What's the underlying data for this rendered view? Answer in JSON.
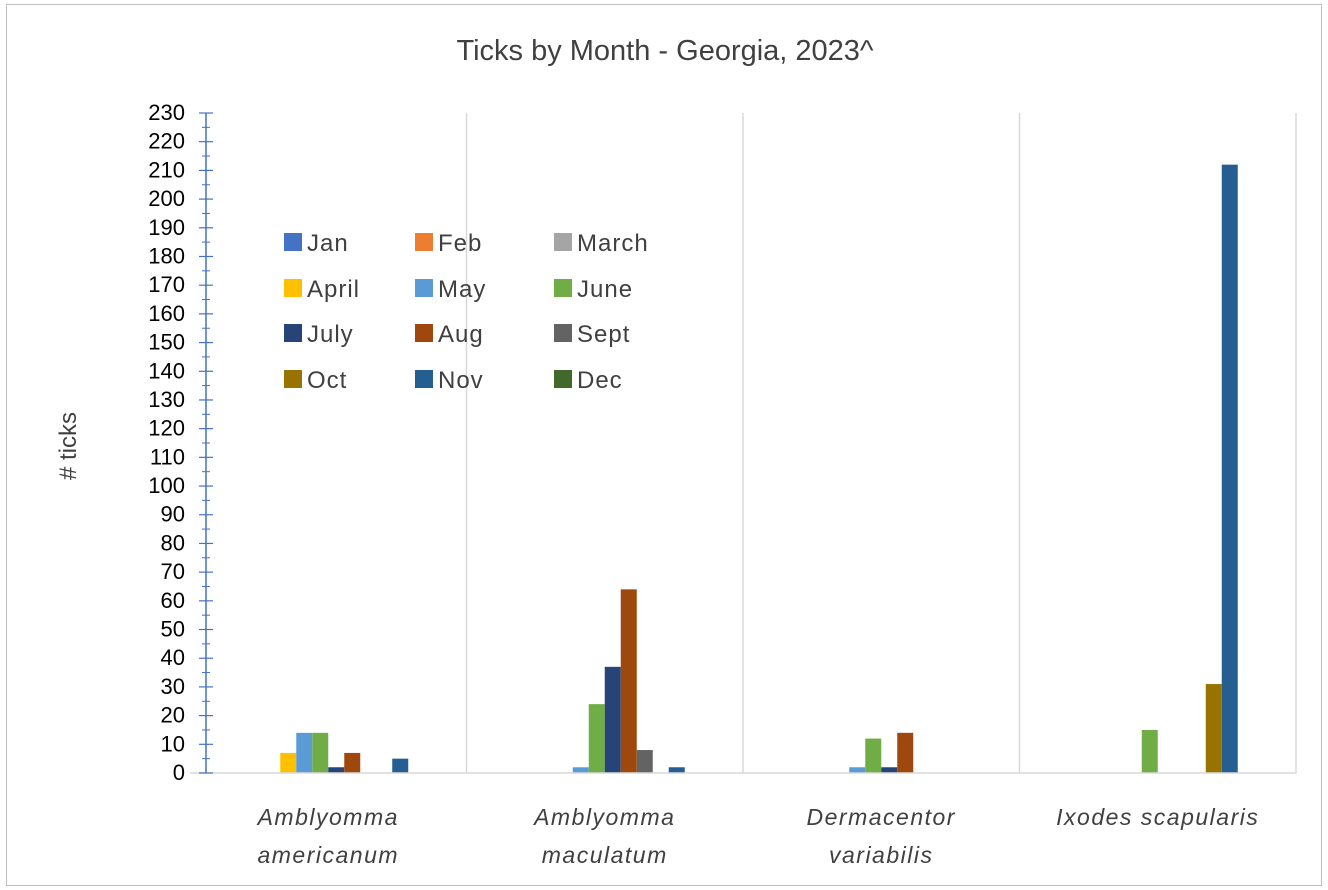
{
  "chart_data": {
    "type": "bar",
    "title": "Ticks by Month - Georgia, 2023^",
    "xlabel": "",
    "ylabel": "# ticks",
    "ylim": [
      0,
      230
    ],
    "y_major_step": 10,
    "grid": "vertical category separators",
    "legend_position": "upper-left inside plot, 3 columns",
    "categories": [
      [
        "Amblyomma",
        "americanum"
      ],
      [
        "Amblyomma",
        "maculatum"
      ],
      [
        "Dermacentor",
        "variabilis"
      ],
      [
        "Ixodes scapularis"
      ]
    ],
    "series": [
      {
        "name": "Jan",
        "color": "#4472c4",
        "values": [
          0,
          0,
          0,
          0
        ]
      },
      {
        "name": "Feb",
        "color": "#ed7d31",
        "values": [
          0,
          0,
          0,
          0
        ]
      },
      {
        "name": "March",
        "color": "#a5a5a5",
        "values": [
          0,
          0,
          0,
          0
        ]
      },
      {
        "name": "April",
        "color": "#ffc000",
        "values": [
          7,
          0,
          0,
          0
        ]
      },
      {
        "name": "May",
        "color": "#5b9bd5",
        "values": [
          14,
          2,
          2,
          0
        ]
      },
      {
        "name": "June",
        "color": "#70ad47",
        "values": [
          14,
          24,
          12,
          15
        ]
      },
      {
        "name": "July",
        "color": "#264478",
        "values": [
          2,
          37,
          2,
          0
        ]
      },
      {
        "name": "Aug",
        "color": "#9e480e",
        "values": [
          7,
          64,
          14,
          0
        ]
      },
      {
        "name": "Sept",
        "color": "#636363",
        "values": [
          0,
          8,
          0,
          0
        ]
      },
      {
        "name": "Oct",
        "color": "#997300",
        "values": [
          0,
          0,
          0,
          31
        ]
      },
      {
        "name": "Nov",
        "color": "#255e91",
        "values": [
          5,
          2,
          0,
          212
        ]
      },
      {
        "name": "Dec",
        "color": "#43682b",
        "values": [
          0,
          0,
          0,
          0
        ]
      }
    ]
  }
}
